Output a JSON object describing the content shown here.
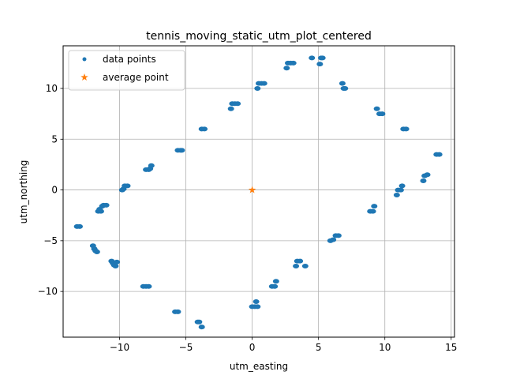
{
  "chart_data": {
    "type": "scatter",
    "title": "tennis_moving_static_utm_plot_centered",
    "xlabel": "utm_easting",
    "ylabel": "utm_northing",
    "xlim": [
      -14.25,
      15.25
    ],
    "ylim": [
      -14.5,
      14.2
    ],
    "xticks": [
      -10,
      -5,
      0,
      5,
      10,
      15
    ],
    "yticks": [
      -10,
      -5,
      0,
      5,
      10
    ],
    "xtick_labels": [
      "−10",
      "−5",
      "0",
      "5",
      "10",
      "15"
    ],
    "ytick_labels": [
      "−10",
      "−5",
      "0",
      "5",
      "10"
    ],
    "grid": true,
    "legend": "upper-left",
    "series": [
      {
        "name": "data points",
        "marker": "circle",
        "color": "#1f77b4",
        "points": [
          [
            -13.2,
            -3.6
          ],
          [
            -13.0,
            -3.6
          ],
          [
            -12.0,
            -5.5
          ],
          [
            -11.9,
            -5.8
          ],
          [
            -11.8,
            -6.0
          ],
          [
            -11.7,
            -6.1
          ],
          [
            -11.6,
            -2.1
          ],
          [
            -11.5,
            -1.9
          ],
          [
            -11.4,
            -2.1
          ],
          [
            -11.3,
            -1.6
          ],
          [
            -11.2,
            -1.5
          ],
          [
            -11.0,
            -1.5
          ],
          [
            -10.6,
            -7.0
          ],
          [
            -10.5,
            -7.2
          ],
          [
            -10.4,
            -7.4
          ],
          [
            -10.3,
            -7.5
          ],
          [
            -10.2,
            -7.1
          ],
          [
            -9.8,
            0.0
          ],
          [
            -9.7,
            0.1
          ],
          [
            -9.6,
            0.4
          ],
          [
            -9.4,
            0.4
          ],
          [
            -8.2,
            -9.5
          ],
          [
            -8.0,
            -9.5
          ],
          [
            -7.8,
            -9.5
          ],
          [
            -8.0,
            2.0
          ],
          [
            -7.8,
            2.0
          ],
          [
            -7.7,
            2.1
          ],
          [
            -7.6,
            2.4
          ],
          [
            -5.8,
            -12.0
          ],
          [
            -5.6,
            -12.0
          ],
          [
            -5.6,
            3.9
          ],
          [
            -5.4,
            3.9
          ],
          [
            -5.3,
            3.9
          ],
          [
            -4.1,
            -13.0
          ],
          [
            -4.0,
            -13.0
          ],
          [
            -3.8,
            -13.5
          ],
          [
            -3.8,
            6.0
          ],
          [
            -3.6,
            6.0
          ],
          [
            -1.6,
            8.0
          ],
          [
            -1.5,
            8.5
          ],
          [
            -1.3,
            8.5
          ],
          [
            -1.1,
            8.5
          ],
          [
            0.0,
            -11.5
          ],
          [
            0.2,
            -11.5
          ],
          [
            0.3,
            -11.0
          ],
          [
            0.4,
            -11.5
          ],
          [
            0.4,
            10.0
          ],
          [
            0.5,
            10.5
          ],
          [
            0.7,
            10.5
          ],
          [
            0.9,
            10.5
          ],
          [
            1.5,
            -9.5
          ],
          [
            1.7,
            -9.5
          ],
          [
            1.8,
            -9.0
          ],
          [
            2.6,
            12.0
          ],
          [
            2.7,
            12.5
          ],
          [
            2.9,
            12.5
          ],
          [
            3.1,
            12.5
          ],
          [
            3.3,
            -7.5
          ],
          [
            3.4,
            -7.0
          ],
          [
            3.6,
            -7.0
          ],
          [
            4.0,
            -7.5
          ],
          [
            4.5,
            13.0
          ],
          [
            5.1,
            12.4
          ],
          [
            5.2,
            13.0
          ],
          [
            5.3,
            13.0
          ],
          [
            5.9,
            -5.0
          ],
          [
            6.1,
            -4.9
          ],
          [
            6.3,
            -4.5
          ],
          [
            6.5,
            -4.5
          ],
          [
            6.8,
            10.5
          ],
          [
            6.9,
            10.0
          ],
          [
            7.0,
            10.0
          ],
          [
            8.9,
            -2.1
          ],
          [
            9.1,
            -2.1
          ],
          [
            9.2,
            -1.6
          ],
          [
            9.4,
            8.0
          ],
          [
            9.6,
            7.5
          ],
          [
            9.8,
            7.5
          ],
          [
            10.9,
            -0.5
          ],
          [
            11.0,
            0.0
          ],
          [
            11.2,
            0.0
          ],
          [
            11.3,
            0.4
          ],
          [
            11.4,
            6.0
          ],
          [
            11.6,
            6.0
          ],
          [
            12.9,
            0.9
          ],
          [
            13.0,
            1.4
          ],
          [
            13.2,
            1.5
          ],
          [
            13.9,
            3.5
          ],
          [
            14.1,
            3.5
          ]
        ]
      },
      {
        "name": "average point",
        "marker": "star",
        "color": "#ff7f0e",
        "points": [
          [
            0.0,
            0.0
          ]
        ]
      }
    ]
  }
}
